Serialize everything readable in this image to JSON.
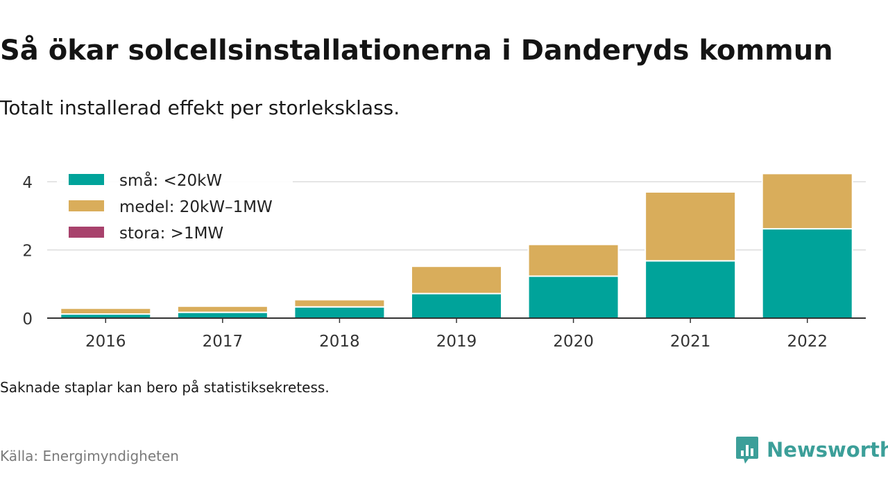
{
  "header": {
    "title": "Så ökar solcellsinstallationerna i Danderyds kommun",
    "subtitle": "Totalt installerad effekt per storleksklass."
  },
  "footer": {
    "note": "Saknade staplar kan bero på statistiksekretess.",
    "source": "Källa: Energimyndigheten",
    "brand": "Newsworthy",
    "brand_icon": "newsworthy-logo-icon",
    "brand_color": "#3c9f99"
  },
  "chart_data": {
    "type": "bar",
    "stacked": true,
    "categories": [
      "2016",
      "2017",
      "2018",
      "2019",
      "2020",
      "2021",
      "2022"
    ],
    "series": [
      {
        "name": "små: <20kW",
        "color": "#00a39a",
        "values": [
          0.12,
          0.17,
          0.33,
          0.72,
          1.23,
          1.68,
          2.62
        ]
      },
      {
        "name": "medel: 20kW–1MW",
        "color": "#d9ad5b",
        "values": [
          0.17,
          0.18,
          0.21,
          0.8,
          0.93,
          2.02,
          1.62
        ]
      },
      {
        "name": "stora: >1MW",
        "color": "#a8426c",
        "values": [
          0,
          0,
          0,
          0,
          0,
          0,
          0
        ]
      }
    ],
    "yticks": [
      0,
      2,
      4
    ],
    "ylim": [
      0,
      4.4
    ],
    "grid": true,
    "legend": "top-left",
    "title": "",
    "xlabel": "",
    "ylabel": ""
  }
}
